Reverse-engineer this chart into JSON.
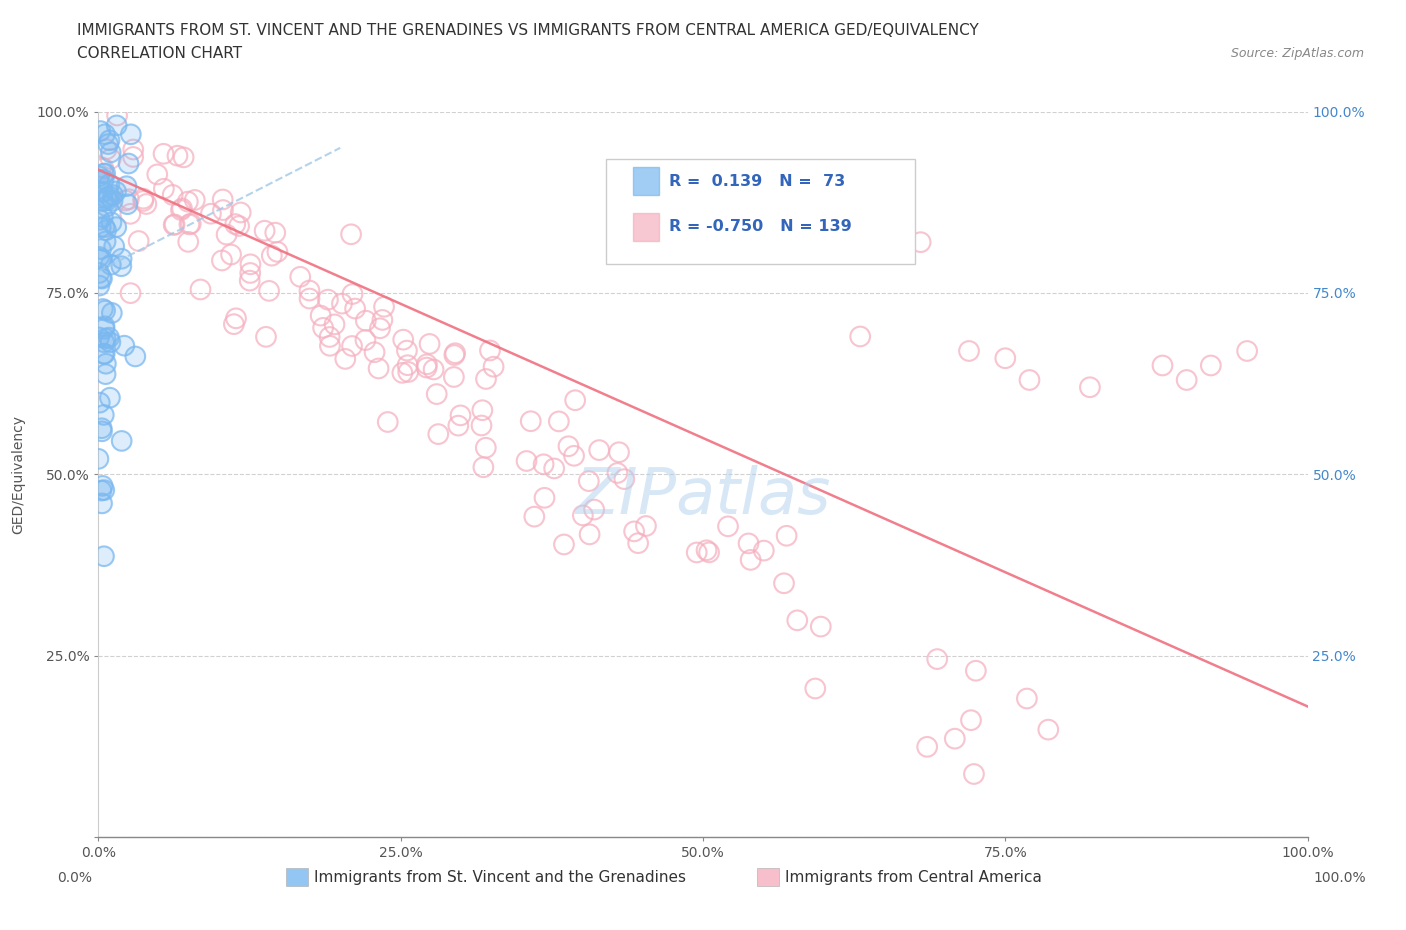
{
  "title_line1": "IMMIGRANTS FROM ST. VINCENT AND THE GRENADINES VS IMMIGRANTS FROM CENTRAL AMERICA GED/EQUIVALENCY",
  "title_line2": "CORRELATION CHART",
  "source_text": "Source: ZipAtlas.com",
  "ylabel": "GED/Equivalency",
  "xlim": [
    0.0,
    1.0
  ],
  "ylim": [
    0.0,
    1.0
  ],
  "xticks": [
    0.0,
    0.25,
    0.5,
    0.75,
    1.0
  ],
  "xticklabels": [
    "0.0%",
    "25.0%",
    "50.0%",
    "75.0%",
    "100.0%"
  ],
  "yticks": [
    0.0,
    0.25,
    0.5,
    0.75,
    1.0
  ],
  "ylabels_left": [
    "",
    "25.0%",
    "50.0%",
    "75.0%",
    "100.0%"
  ],
  "ylabels_right": [
    "",
    "25.0%",
    "50.0%",
    "75.0%",
    "100.0%"
  ],
  "blue_R": 0.139,
  "blue_N": 73,
  "pink_R": -0.75,
  "pink_N": 139,
  "blue_color": "#7ab8f0",
  "pink_color": "#f5b0c0",
  "blue_line_color": "#a0c8e8",
  "pink_line_color": "#f07080",
  "watermark_color": "#b0d0ee",
  "background_color": "#ffffff",
  "legend_label_blue": "Immigrants from St. Vincent and the Grenadines",
  "legend_label_pink": "Immigrants from Central America",
  "title_fontsize": 11,
  "axis_fontsize": 10,
  "tick_fontsize": 10,
  "legend_fontsize": 11,
  "right_tick_color": "#4488cc",
  "figsize": [
    14.06,
    9.3
  ],
  "dpi": 100
}
